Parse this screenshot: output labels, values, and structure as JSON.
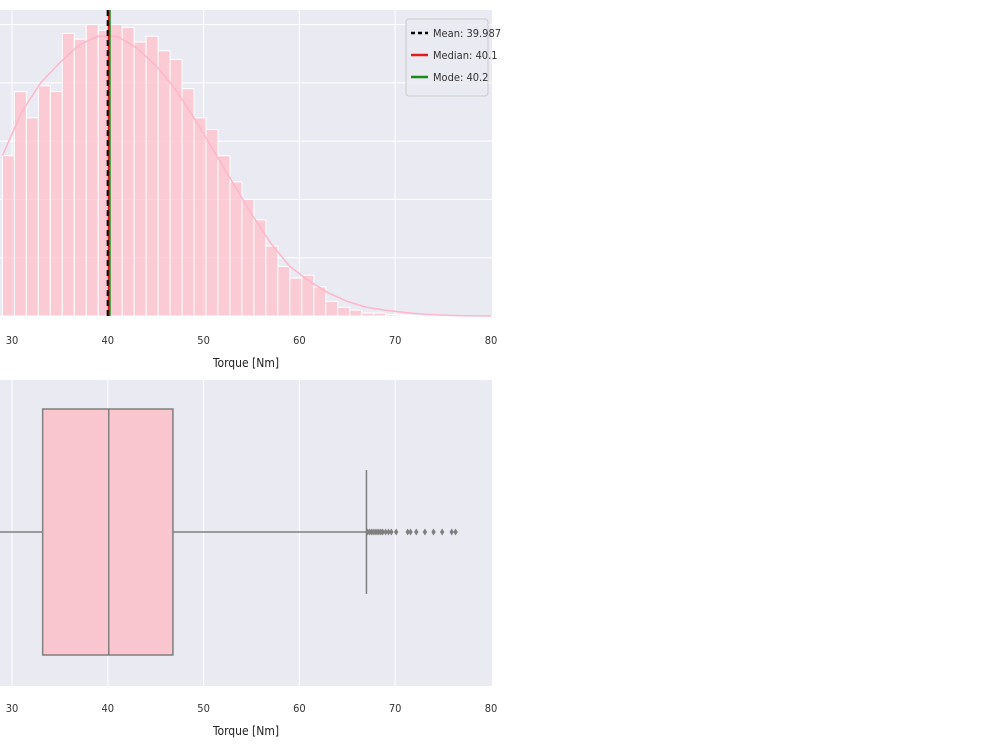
{
  "chart_data": [
    {
      "type": "histogram",
      "xlabel": "Torque [Nm]",
      "xlim": [
        29,
        80
      ],
      "xticks": [
        "30",
        "40",
        "50",
        "60",
        "70",
        "80"
      ],
      "bin_width": 1.25,
      "bin_start": 29.0,
      "counts": [
        0.55,
        0.77,
        0.68,
        0.79,
        0.77,
        0.97,
        0.95,
        1.0,
        0.98,
        1.0,
        0.99,
        0.94,
        0.96,
        0.91,
        0.88,
        0.78,
        0.68,
        0.64,
        0.55,
        0.46,
        0.4,
        0.33,
        0.24,
        0.17,
        0.13,
        0.14,
        0.1,
        0.05,
        0.03,
        0.02,
        0.01,
        0.01,
        0.005,
        0.003,
        0.002,
        0.001,
        0.001,
        0.0,
        0.0,
        0.0,
        0.0
      ],
      "kde": [
        [
          29,
          0.55
        ],
        [
          31,
          0.7
        ],
        [
          33,
          0.8
        ],
        [
          35,
          0.87
        ],
        [
          37,
          0.93
        ],
        [
          39,
          0.96
        ],
        [
          41,
          0.96
        ],
        [
          43,
          0.92
        ],
        [
          45,
          0.86
        ],
        [
          47,
          0.78
        ],
        [
          49,
          0.68
        ],
        [
          51,
          0.57
        ],
        [
          53,
          0.46
        ],
        [
          55,
          0.35
        ],
        [
          57,
          0.25
        ],
        [
          59,
          0.17
        ],
        [
          61,
          0.12
        ],
        [
          63,
          0.08
        ],
        [
          65,
          0.05
        ],
        [
          67,
          0.03
        ],
        [
          69,
          0.02
        ],
        [
          71,
          0.012
        ],
        [
          73,
          0.006
        ],
        [
          75,
          0.003
        ],
        [
          77,
          0.001
        ],
        [
          80,
          0.0
        ]
      ],
      "bar_color": "#ffc0cb",
      "lines": [
        {
          "label": "Mean: 39.987",
          "value": 39.987,
          "color": "#000000",
          "style": "dashed"
        },
        {
          "label": "Median: 40.1",
          "value": 40.1,
          "color": "#e31a1c",
          "style": "solid"
        },
        {
          "label": "Mode: 40.2",
          "value": 40.2,
          "color": "#1a8a1a",
          "style": "solid"
        }
      ],
      "legend_placement": "top-right",
      "grid": true
    },
    {
      "type": "box",
      "xlabel": "Torque [Nm]",
      "xlim": [
        29,
        80
      ],
      "xticks": [
        "30",
        "40",
        "50",
        "60",
        "70",
        "80"
      ],
      "whisker_low": 20,
      "q1": 33.2,
      "median": 40.1,
      "q3": 46.8,
      "whisker_high": 67.0,
      "outliers": [
        67.1,
        67.3,
        67.5,
        67.7,
        67.9,
        68.1,
        68.3,
        68.5,
        68.7,
        69.0,
        69.3,
        69.6,
        70.1,
        71.3,
        71.6,
        72.2,
        73.1,
        74.0,
        74.9,
        75.9,
        76.3
      ],
      "box_color": "#f9c6cf",
      "grid": true
    }
  ]
}
